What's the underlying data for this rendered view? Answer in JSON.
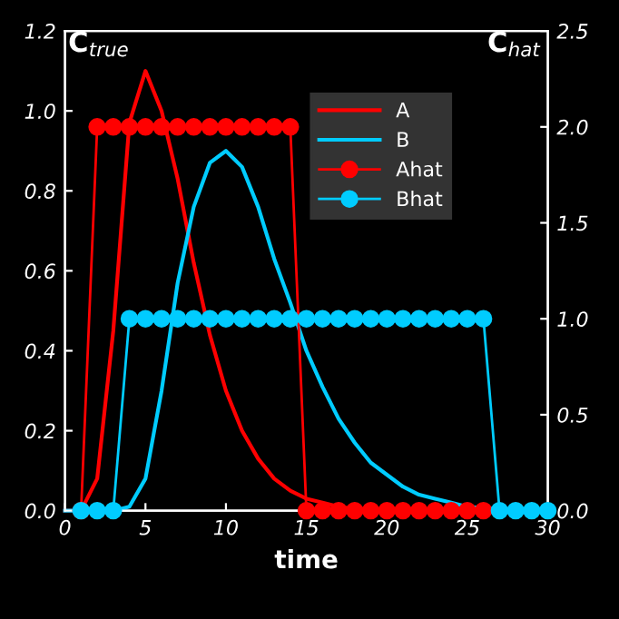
{
  "chart_data": {
    "type": "line",
    "xlabel": "time",
    "ylabel": "C$_{true}$",
    "y2label": "C$_{hat}$",
    "xlim": [
      0,
      30
    ],
    "xticks": [
      0,
      5,
      10,
      15,
      20,
      25,
      30
    ],
    "ylim": [
      0,
      1.2
    ],
    "yticks": [
      {
        "value": 0,
        "label": "0.0"
      },
      {
        "value": 0.2,
        "label": "0.2"
      },
      {
        "value": 0.4,
        "label": "0.4"
      },
      {
        "value": 0.6,
        "label": "0.6"
      },
      {
        "value": 0.8,
        "label": "0.8"
      },
      {
        "value": 1.0,
        "label": "1.0"
      },
      {
        "value": 1.2,
        "label": "1.2"
      }
    ],
    "y2lim": [
      0,
      2.5
    ],
    "y2ticks": [
      {
        "value": 0,
        "label": "0.0"
      },
      {
        "value": 0.5,
        "label": "0.5"
      },
      {
        "value": 1.0,
        "label": "1.0"
      },
      {
        "value": 1.5,
        "label": "1.5"
      },
      {
        "value": 2.0,
        "label": "2.0"
      },
      {
        "value": 2.5,
        "label": "2.5"
      }
    ],
    "legend": "top right",
    "grid": false,
    "series": [
      {
        "name": "A",
        "color": "#ff0000",
        "marker": "none",
        "x": [
          0,
          1,
          2,
          3,
          4,
          5,
          6,
          7,
          8,
          9,
          10,
          11,
          12,
          13,
          14,
          15,
          16,
          17,
          18,
          20,
          22,
          25,
          30
        ],
        "values": [
          0,
          0.0,
          0.08,
          0.45,
          0.97,
          1.1,
          1.0,
          0.83,
          0.62,
          0.44,
          0.3,
          0.2,
          0.13,
          0.08,
          0.05,
          0.03,
          0.02,
          0.01,
          0.005,
          0,
          0,
          0,
          0
        ]
      },
      {
        "name": "B",
        "color": "#00ccff",
        "marker": "none",
        "x": [
          0,
          1,
          2,
          3,
          4,
          5,
          6,
          7,
          8,
          9,
          10,
          11,
          12,
          13,
          14,
          15,
          16,
          17,
          18,
          19,
          20,
          21,
          22,
          23,
          24,
          25,
          28,
          30
        ],
        "values": [
          0,
          0,
          0,
          0,
          0.01,
          0.08,
          0.3,
          0.57,
          0.76,
          0.87,
          0.9,
          0.86,
          0.76,
          0.63,
          0.52,
          0.4,
          0.31,
          0.23,
          0.17,
          0.12,
          0.09,
          0.06,
          0.04,
          0.03,
          0.02,
          0.01,
          0,
          0
        ]
      },
      {
        "name": "Ahat",
        "color": "#ff0000",
        "marker": "circle",
        "axis": "y2",
        "x": [
          1,
          2,
          3,
          4,
          5,
          6,
          7,
          8,
          9,
          10,
          11,
          12,
          13,
          14,
          15,
          16,
          17,
          18,
          19,
          20,
          21,
          22,
          23,
          24,
          25,
          26
        ],
        "values": [
          0,
          2,
          2,
          2,
          2,
          2,
          2,
          2,
          2,
          2,
          2,
          2,
          2,
          2,
          0,
          0,
          0,
          0,
          0,
          0,
          0,
          0,
          0,
          0,
          0,
          0
        ]
      },
      {
        "name": "Bhat",
        "color": "#00ccff",
        "marker": "circle",
        "axis": "y2",
        "x": [
          1,
          2,
          3,
          4,
          5,
          6,
          7,
          8,
          9,
          10,
          11,
          12,
          13,
          14,
          15,
          16,
          17,
          18,
          19,
          20,
          21,
          22,
          23,
          24,
          25,
          26,
          27,
          28,
          29,
          30
        ],
        "values": [
          0,
          0,
          0,
          1,
          1,
          1,
          1,
          1,
          1,
          1,
          1,
          1,
          1,
          1,
          1,
          1,
          1,
          1,
          1,
          1,
          1,
          1,
          1,
          1,
          1,
          1,
          0,
          0,
          0,
          0
        ]
      }
    ]
  }
}
